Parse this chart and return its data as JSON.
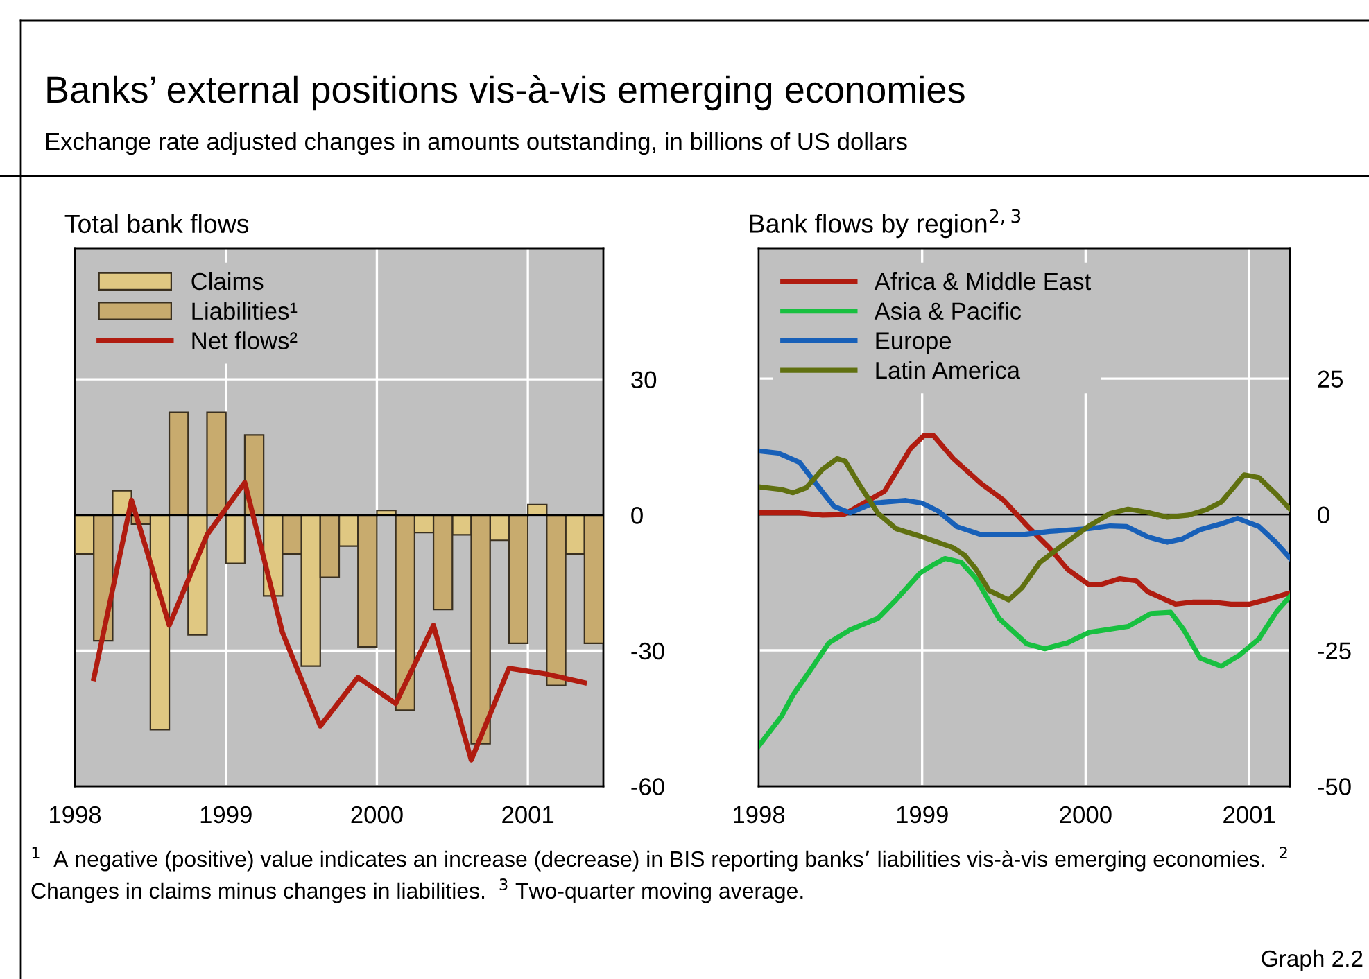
{
  "chart_data": [
    {
      "type": "other",
      "title": "Banks’ external positions vis-à-vis emerging economies",
      "subtitle": "Exchange rate adjusted changes in amounts outstanding, in billions of US dollars",
      "annotations": [
        "$^{1}$  A negative (positive) value indicates an increase (decrease) in BIS reporting banks’ liabilities vis-à-vis emerging economies.  $^{2}$ Changes in claims minus changes in liabilities.  $^{3}$ Two-quarter moving average.",
        "Graph 2.2"
      ]
    },
    {
      "type": "bar",
      "title": "Total bank flows",
      "x": [
        1998.125,
        1998.375,
        1998.625,
        1998.875,
        1999.125,
        1999.375,
        1999.625,
        1999.875,
        2000.125,
        2000.375,
        2000.625,
        2000.875,
        2001.125,
        2001.375
      ],
      "series": [
        {
          "name": "Claims",
          "color": "#e0c882",
          "values": [
            -8.6,
            5.4,
            -47.5,
            -26.5,
            -10.7,
            -17.9,
            -33.4,
            -6.9,
            1.0,
            -3.9,
            -4.4,
            -5.6,
            2.3,
            -8.6
          ]
        },
        {
          "name": "Liabilities¹",
          "color": "#c8ab6e",
          "values": [
            -27.8,
            -2.0,
            22.7,
            22.7,
            17.7,
            -8.6,
            -13.8,
            -29.2,
            -43.2,
            -20.9,
            -50.6,
            -28.4,
            -37.7,
            -28.4
          ]
        },
        {
          "name": "Net flows²",
          "type": "line",
          "color": "#b01c10",
          "values": [
            -36.2,
            3.3,
            -24.4,
            -4.4,
            7.2,
            -26.0,
            -46.7,
            -35.9,
            -41.7,
            -24.4,
            -54.2,
            -33.9,
            -35.2,
            -37.1
          ]
        }
      ],
      "xlim": [
        1998,
        2001.5
      ],
      "xticks": [
        1998,
        1999,
        2000,
        2001
      ],
      "ylim": [
        -60,
        59
      ],
      "yticks": [
        -60,
        -30,
        0,
        30
      ],
      "ref_lines": [
        {
          "axis": "y",
          "value": 0,
          "color": "#000000"
        }
      ],
      "grid": true,
      "legend": "top left"
    },
    {
      "type": "line",
      "title": "Bank flows by region$^{2,}$$^{3}$",
      "series": [
        {
          "name": "Africa & Middle East",
          "color": "#b01c10",
          "x": [
            1998.0,
            1998.25,
            1998.39,
            1998.52,
            1998.77,
            1998.93,
            1999.01,
            1999.07,
            1999.19,
            1999.36,
            1999.5,
            1999.64,
            1999.78,
            1999.89,
            2000.02,
            2000.09,
            2000.21,
            2000.31,
            2000.38,
            2000.55,
            2000.66,
            2000.77,
            2000.89,
            2001.0,
            2001.14,
            2001.25
          ],
          "values": [
            0.3,
            0.3,
            -0.1,
            0,
            4.3,
            12.2,
            14.5,
            14.5,
            10.3,
            5.7,
            2.6,
            -2.0,
            -6.2,
            -10.1,
            -12.9,
            -12.9,
            -11.8,
            -12.2,
            -14.2,
            -16.5,
            -16.1,
            -16.1,
            -16.5,
            -16.5,
            -15.4,
            -14.4
          ]
        },
        {
          "name": "Asia & Pacific",
          "color": "#18c040",
          "x": [
            1998.0,
            1998.14,
            1998.21,
            1998.31,
            1998.43,
            1998.56,
            1998.73,
            1998.84,
            1998.99,
            1999.07,
            1999.14,
            1999.24,
            1999.33,
            1999.47,
            1999.64,
            1999.75,
            1999.89,
            2000.02,
            2000.26,
            2000.4,
            2000.52,
            2000.6,
            2000.7,
            2000.83,
            2000.94,
            2001.06,
            2001.17,
            2001.25
          ],
          "values": [
            -42.6,
            -37.1,
            -33.2,
            -28.9,
            -23.6,
            -21.2,
            -19.1,
            -15.7,
            -10.7,
            -9.2,
            -8.1,
            -8.8,
            -11.8,
            -19.1,
            -23.8,
            -24.7,
            -23.6,
            -21.7,
            -20.6,
            -18.2,
            -18.0,
            -21.2,
            -26.4,
            -27.9,
            -25.9,
            -22.9,
            -17.8,
            -15.1
          ]
        },
        {
          "name": "Europe",
          "color": "#1860b8",
          "x": [
            1998.0,
            1998.12,
            1998.25,
            1998.36,
            1998.46,
            1998.56,
            1998.7,
            1998.9,
            1999.0,
            1999.1,
            1999.21,
            1999.36,
            1999.61,
            1999.78,
            2000.02,
            2000.15,
            2000.25,
            2000.38,
            2000.5,
            2000.59,
            2000.7,
            2000.83,
            2000.93,
            2001.06,
            2001.16,
            2001.25
          ],
          "values": [
            11.7,
            11.3,
            9.6,
            5.3,
            1.5,
            0.3,
            2.1,
            2.6,
            2.1,
            0.6,
            -2.2,
            -3.7,
            -3.7,
            -3.1,
            -2.6,
            -2.1,
            -2.2,
            -4.1,
            -5.1,
            -4.5,
            -2.8,
            -1.7,
            -0.7,
            -2.2,
            -5.0,
            -8.0
          ]
        },
        {
          "name": "Latin America",
          "color": "#607010",
          "x": [
            1998.0,
            1998.14,
            1998.21,
            1998.29,
            1998.39,
            1998.48,
            1998.53,
            1998.62,
            1998.73,
            1998.84,
            1999.02,
            1999.19,
            1999.26,
            1999.33,
            1999.41,
            1999.53,
            1999.61,
            1999.72,
            1999.87,
            2000.02,
            2000.15,
            2000.26,
            2000.38,
            2000.5,
            2000.63,
            2000.74,
            2000.83,
            2000.97,
            2001.06,
            2001.17,
            2001.25
          ],
          "values": [
            5.1,
            4.6,
            4.0,
            4.9,
            8.3,
            10.3,
            9.8,
            5.3,
            0.2,
            -2.6,
            -4.3,
            -6.1,
            -7.5,
            -10.1,
            -14.0,
            -15.7,
            -13.5,
            -8.8,
            -5.4,
            -2.1,
            0.2,
            1.0,
            0.4,
            -0.5,
            -0.1,
            0.9,
            2.3,
            7.3,
            6.8,
            3.6,
            1.0
          ]
        }
      ],
      "xlim": [
        1998,
        2001.25
      ],
      "xticks": [
        1998,
        1999,
        2000,
        2001
      ],
      "ylim": [
        -50,
        49
      ],
      "yticks": [
        -50,
        -25,
        0,
        25
      ],
      "ref_lines": [
        {
          "axis": "y",
          "value": 0,
          "color": "#000000"
        }
      ],
      "grid": true,
      "legend": "top left"
    }
  ]
}
